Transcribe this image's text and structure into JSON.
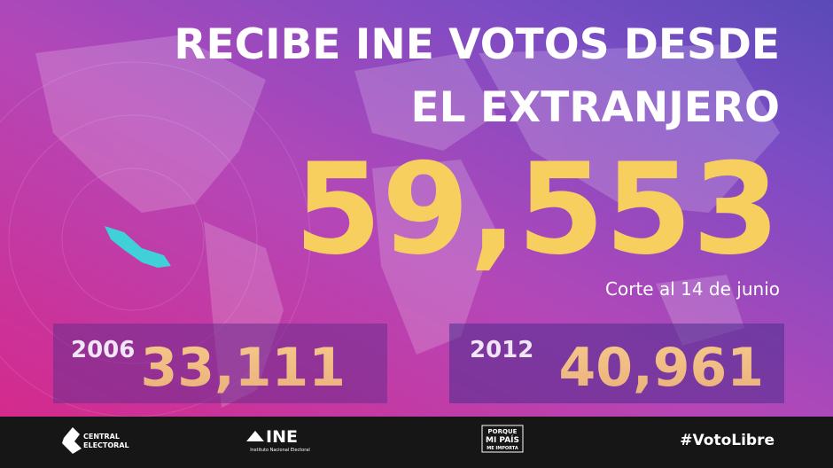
{
  "headline": {
    "line1": "RECIBE INE VOTOS DESDE",
    "line2": "EL EXTRANJERO"
  },
  "main_count": "59,553",
  "note": "Corte al 14 de junio",
  "comparisons": [
    {
      "year": "2006",
      "count": "33,111"
    },
    {
      "year": "2012",
      "count": "40,961"
    }
  ],
  "footer": {
    "central_electoral": {
      "line1": "CENTRAL",
      "line2": "ELECTORAL"
    },
    "ine": {
      "name": "INE",
      "subtitle": "Instituto Nacional Electoral"
    },
    "campaign": {
      "line1": "PORQUE",
      "line2": "MI PAÍS",
      "line3": "ME IMPORTA"
    },
    "hashtag": "#VotoLibre"
  }
}
